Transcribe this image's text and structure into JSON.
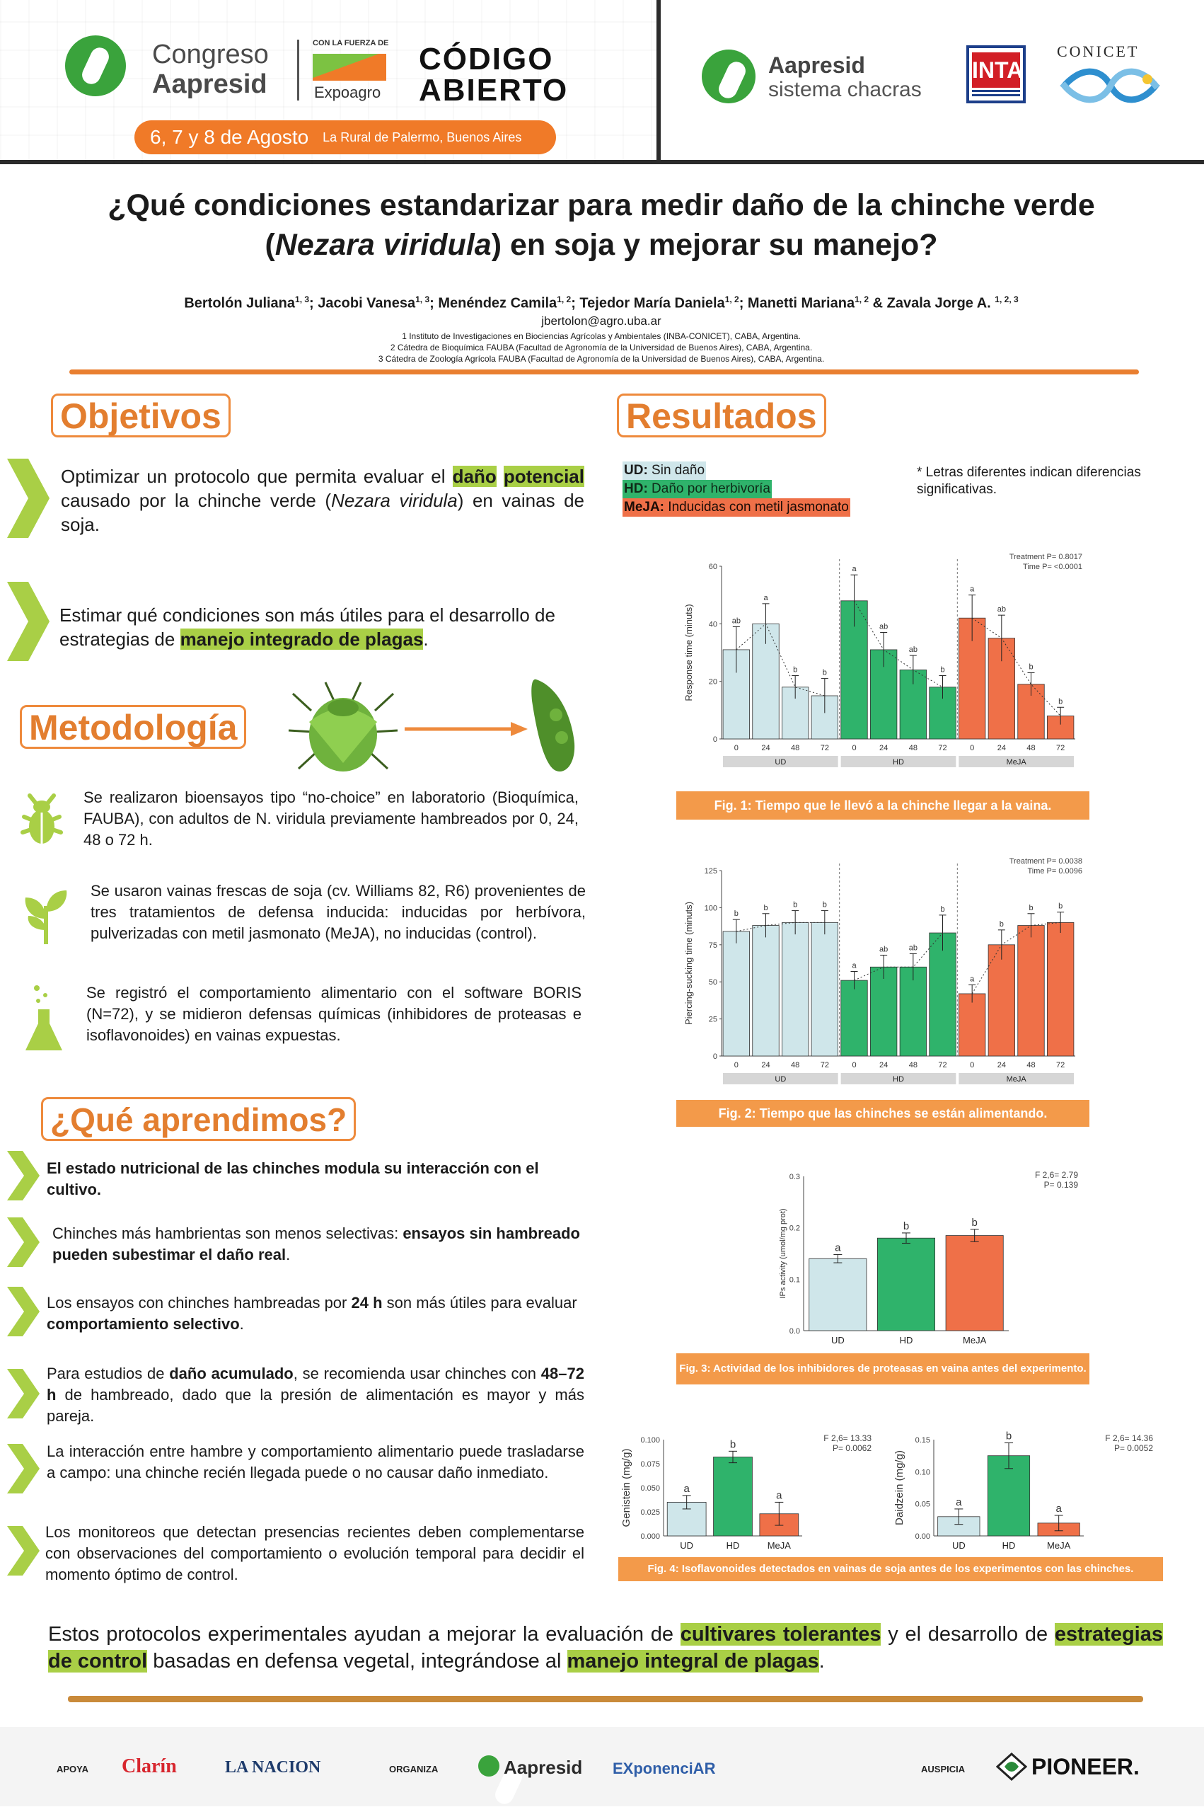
{
  "header": {
    "congreso_line1": "Congreso",
    "congreso_line2": "Aapresid",
    "con_la_fuerza": "CON LA FUERZA DE",
    "expoagro": "Expoagro",
    "codigo_line1": "CÓDIGO",
    "codigo_line2": "ABIERTO",
    "date": "6, 7 y 8 de Agosto",
    "venue": "La Rural de Palermo, Buenos Aires",
    "chacras_line1": "Aapresid",
    "chacras_line2": "sistema chacras",
    "inta": "INTA",
    "conicet": "CONICET"
  },
  "title_line1": "¿Qué condiciones estandarizar para medir daño de la chinche verde",
  "title_line2_pre": "(",
  "title_line2_species": "Nezara viridula",
  "title_line2_post": ") en soja y mejorar su manejo?",
  "authors": {
    "text_a": "Bertolón Juliana",
    "sup_a": "1, 3",
    "text_b": "; Jacobi Vanesa",
    "sup_b": "1, 3",
    "text_c": "; Menéndez Camila",
    "sup_c": "1, 2",
    "text_d": "; Tejedor María Daniela",
    "sup_d": "1, 2",
    "text_e": "; Manetti Mariana",
    "sup_e": "1, 2",
    "text_f": " & Zavala Jorge A. ",
    "sup_f": "1, 2, 3",
    "email": "jbertolon@agro.uba.ar",
    "aff1": "1 Instituto de Investigaciones en Biociencias Agrícolas y Ambientales (INBA-CONICET), CABA, Argentina.",
    "aff2": "2 Cátedra de Bioquímica FAUBA (Facultad de Agronomía de la Universidad de Buenos Aires), CABA, Argentina.",
    "aff3": "3 Cátedra de Zoología Agrícola FAUBA (Facultad de Agronomía de la Universidad de Buenos Aires), CABA, Argentina."
  },
  "objetivos": {
    "heading": "Objetivos",
    "p1_a": "Optimizar un protocolo que permita evaluar el ",
    "p1_hl1": "daño",
    "p1_hl2": "potencial",
    "p1_b": " causado por la chinche verde (",
    "p1_species": "Nezara viridula",
    "p1_c": ") en vainas de soja.",
    "p2_a": "Estimar qué condiciones son más útiles para el desarrollo de estrategias de ",
    "p2_hl": "manejo integrado de plagas",
    "p2_b": "."
  },
  "metodologia": {
    "heading": "Metodología",
    "p1": "Se realizaron bioensayos tipo “no-choice” en laboratorio (Bioquímica, FAUBA), con adultos de N. viridula previamente hambreados por 0, 24, 48 o 72 h.",
    "p2": "Se usaron vainas frescas de soja (cv. Williams 82, R6) provenientes de tres tratamientos de defensa inducida: inducidas por herbívora, pulverizadas con metil jasmonato (MeJA), no inducidas (control).",
    "p3": "Se registró el comportamiento alimentario con el software BORIS (N=72), y se midieron defensas químicas (inhibidores de proteasas e isoflavonoides) en vainas expuestas."
  },
  "aprendimos": {
    "heading": "¿Qué aprendimos?",
    "i1": "El estado nutricional de las chinches modula su interacción con el cultivo.",
    "i2_a": "Chinches más hambrientas son menos selectivas: ",
    "i2_b": "ensayos sin hambreado pueden subestimar el daño real",
    "i2_c": ".",
    "i3_a": "Los ensayos con chinches hambreadas por ",
    "i3_b": "24 h",
    "i3_c": " son más útiles para evaluar ",
    "i3_d": "comportamiento selectivo",
    "i3_e": ".",
    "i4_a": "Para estudios de ",
    "i4_b": "daño acumulado",
    "i4_c": ", se recomienda usar chinches con ",
    "i4_d": "48–72 h",
    "i4_e": " de hambreado, dado que la presión de alimentación es mayor y más pareja.",
    "i5": "La interacción entre hambre y comportamiento alimentario puede trasladarse a campo: una chinche recién llegada puede o no causar daño inmediato.",
    "i6": "Los monitoreos que detectan presencias recientes deben complementarse con observaciones del comportamiento o evolución temporal para decidir el momento óptimo de control."
  },
  "resultados": {
    "heading": "Resultados",
    "legend_ud_key": "UD:",
    "legend_ud": " Sin daño",
    "legend_hd_key": "HD:",
    "legend_hd": " Daño por herbivoría",
    "legend_meja_key": "MeJA:",
    "legend_meja": " Inducidas con metil jasmonato",
    "note": "* Letras diferentes indican diferencias significativas.",
    "fig1_caption": "Fig. 1: Tiempo que le llevó a la chinche llegar a la vaina.",
    "fig2_caption": "Fig. 2: Tiempo que las chinches se están alimentando.",
    "fig3_caption": "Fig. 3: Actividad de  los inhibidores de proteasas en vaina antes del experimento.",
    "fig4_caption": "Fig. 4: Isoflavonoides detectados en vainas de soja antes de los experimentos con las chinches."
  },
  "colors": {
    "ud": "#cfe6ea",
    "hd": "#2fb36b",
    "meja": "#ef7048",
    "accent": "#ee8a3c",
    "highlight": "#a9cf46"
  },
  "chart_data": [
    {
      "type": "bar",
      "title": "",
      "ylabel": "Response time (minuts)",
      "ylim": [
        0,
        60
      ],
      "yticks": [
        "0",
        "20",
        "40",
        "60"
      ],
      "groups": [
        "UD",
        "HD",
        "MeJA"
      ],
      "categories": [
        "0",
        "24",
        "48",
        "72"
      ],
      "series": [
        {
          "name": "UD",
          "values": [
            31,
            40,
            18,
            15
          ],
          "errors": [
            8,
            7,
            4,
            6
          ],
          "letters": [
            "ab",
            "a",
            "b",
            "b"
          ]
        },
        {
          "name": "HD",
          "values": [
            48,
            31,
            24,
            18
          ],
          "errors": [
            9,
            6,
            5,
            4
          ],
          "letters": [
            "a",
            "ab",
            "ab",
            "b"
          ]
        },
        {
          "name": "MeJA",
          "values": [
            42,
            35,
            19,
            8
          ],
          "errors": [
            8,
            8,
            4,
            3
          ],
          "letters": [
            "a",
            "ab",
            "b",
            "b"
          ]
        }
      ],
      "stat_line1": "Treatment P= 0.8017",
      "stat_line2": "Time P= <0.0001"
    },
    {
      "type": "bar",
      "title": "",
      "ylabel": "Piercing-sucking time (minuts)",
      "ylim": [
        0,
        125
      ],
      "yticks": [
        "0",
        "25",
        "50",
        "75",
        "100",
        "125"
      ],
      "groups": [
        "UD",
        "HD",
        "MeJA"
      ],
      "categories": [
        "0",
        "24",
        "48",
        "72"
      ],
      "series": [
        {
          "name": "UD",
          "values": [
            84,
            88,
            90,
            90
          ],
          "errors": [
            8,
            8,
            8,
            8
          ],
          "letters": [
            "b",
            "b",
            "b",
            "b"
          ]
        },
        {
          "name": "HD",
          "values": [
            51,
            60,
            60,
            83
          ],
          "errors": [
            6,
            8,
            9,
            12
          ],
          "letters": [
            "a",
            "ab",
            "ab",
            "b"
          ]
        },
        {
          "name": "MeJA",
          "values": [
            42,
            75,
            88,
            90
          ],
          "errors": [
            6,
            10,
            8,
            7
          ],
          "letters": [
            "a",
            "b",
            "b",
            "b"
          ]
        }
      ],
      "stat_line1": "Treatment P= 0.0038",
      "stat_line2": "Time P= 0.0096"
    },
    {
      "type": "bar",
      "title": "",
      "ylabel": "IPs activity (umol/mg prot)",
      "ylim": [
        0,
        0.3
      ],
      "yticks": [
        "0.0",
        "0.1",
        "0.2",
        "0.3"
      ],
      "categories": [
        "UD",
        "HD",
        "MeJA"
      ],
      "values": [
        0.14,
        0.18,
        0.185
      ],
      "errors": [
        0.008,
        0.01,
        0.012
      ],
      "letters": [
        "a",
        "b",
        "b"
      ],
      "stat_f": "F 2,6= 2.79",
      "stat_p": "P= 0.139"
    },
    {
      "type": "bar",
      "title": "",
      "ylabel": "Genistein (mg/g)",
      "ylim": [
        0,
        0.1
      ],
      "yticks": [
        "0.000",
        "0.025",
        "0.050",
        "0.075",
        "0.100"
      ],
      "categories": [
        "UD",
        "HD",
        "MeJA"
      ],
      "values": [
        0.035,
        0.082,
        0.023
      ],
      "errors": [
        0.007,
        0.006,
        0.012
      ],
      "letters": [
        "a",
        "b",
        "a"
      ],
      "stat_f": "F 2,6= 13.33",
      "stat_p": "P= 0.0062"
    },
    {
      "type": "bar",
      "title": "",
      "ylabel": "Daidzein (mg/g)",
      "ylim": [
        0,
        0.15
      ],
      "yticks": [
        "0.00",
        "0.05",
        "0.10",
        "0.15"
      ],
      "categories": [
        "UD",
        "HD",
        "MeJA"
      ],
      "values": [
        0.03,
        0.125,
        0.02
      ],
      "errors": [
        0.012,
        0.02,
        0.012
      ],
      "letters": [
        "a",
        "b",
        "a"
      ],
      "stat_f": "F 2,6= 14.36",
      "stat_p": "P= 0.0052"
    }
  ],
  "conclusion": {
    "a": "Estos protocolos experimentales ayudan a mejorar la evaluación de ",
    "hl1": "cultivares tolerantes",
    "b": " y el desarrollo de ",
    "hl2": "estrategias de control",
    "c": " basadas en defensa vegetal, integrándose al ",
    "hl3": "manejo integral de plagas",
    "d": "."
  },
  "footer": {
    "apoya": "APOYA",
    "clarin": "Clarín",
    "nacion": "LA NACION",
    "organiza": "ORGANIZA",
    "aapresid": "Aapresid",
    "exponencial": "EXponenciAR",
    "auspicia": "AUSPICIA",
    "pioneer": "PIONEER."
  }
}
